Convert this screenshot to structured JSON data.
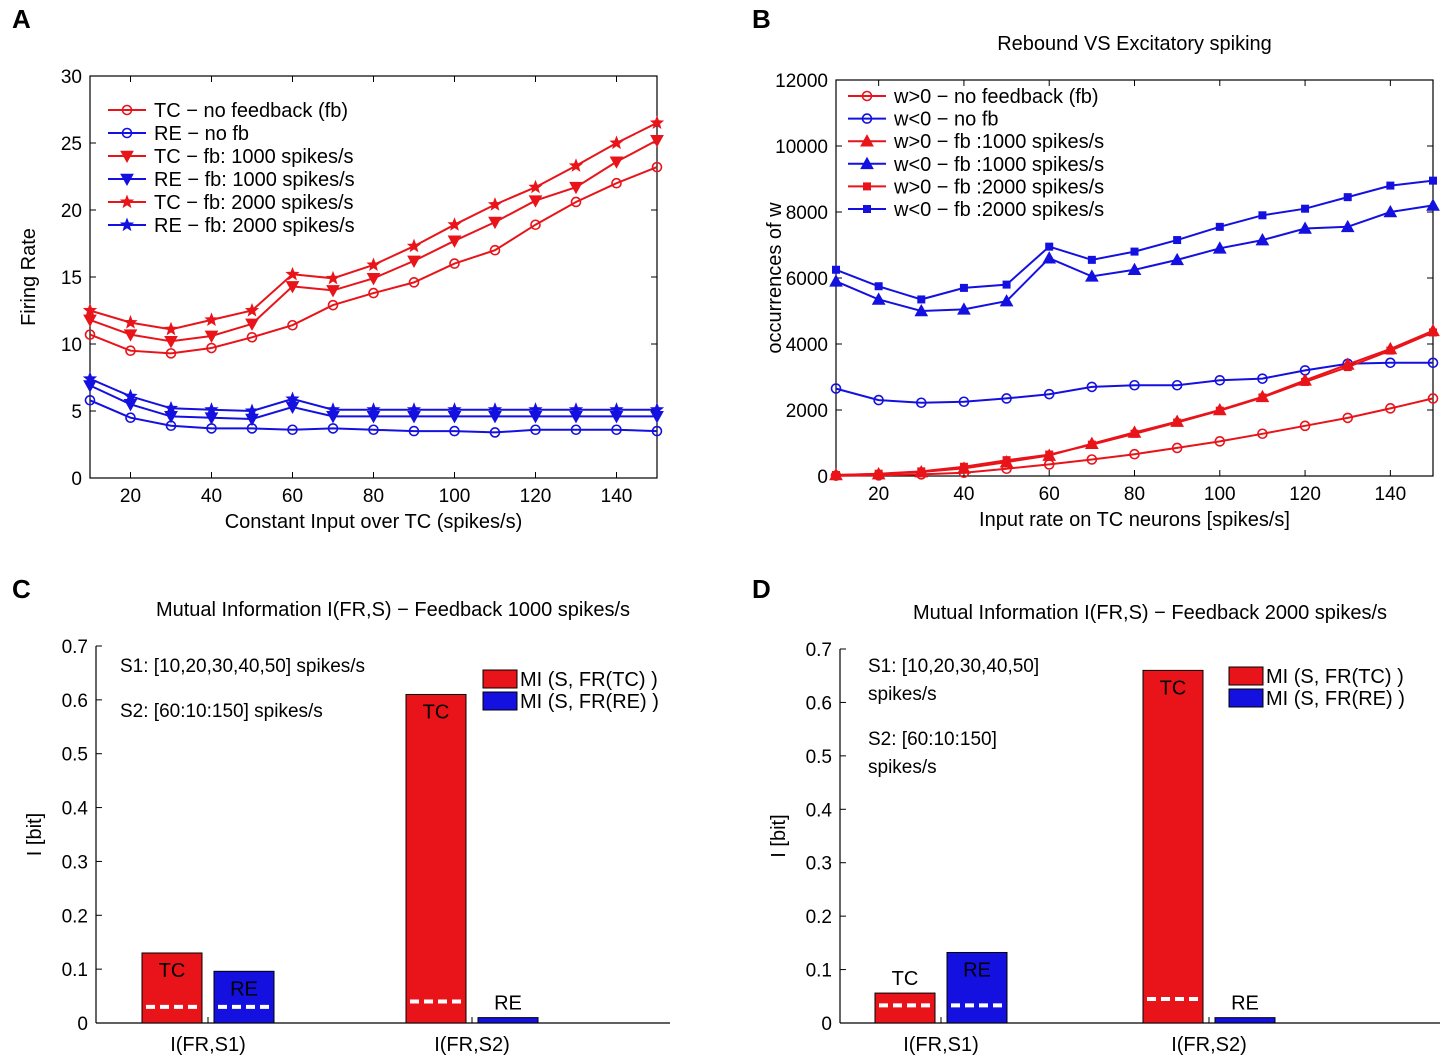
{
  "figure": {
    "panel_labels": [
      "A",
      "B",
      "C",
      "D"
    ]
  },
  "colors": {
    "red": "#e8141a",
    "blue": "#1410e0",
    "white": "#ffffff"
  },
  "chart_data": [
    {
      "panel": "A",
      "type": "line",
      "title": "",
      "xlabel": "Constant Input over TC (spikes/s)",
      "ylabel": "Firing Rate",
      "xlim": [
        10,
        150
      ],
      "ylim": [
        0,
        30
      ],
      "xticks": [
        20,
        40,
        60,
        80,
        100,
        120,
        140
      ],
      "yticks": [
        0,
        5,
        10,
        15,
        20,
        25,
        30
      ],
      "x": [
        10,
        20,
        30,
        40,
        50,
        60,
        70,
        80,
        90,
        100,
        110,
        120,
        130,
        140,
        150
      ],
      "legend_position": "top-left",
      "series": [
        {
          "name": "TC − no feedback (fb)",
          "color": "#e8141a",
          "marker": "circle",
          "values": [
            10.7,
            9.5,
            9.3,
            9.7,
            10.5,
            11.4,
            12.9,
            13.8,
            14.6,
            16.0,
            17.0,
            18.9,
            20.6,
            22.0,
            23.2
          ]
        },
        {
          "name": "RE − no fb",
          "color": "#1410e0",
          "marker": "circle",
          "values": [
            5.8,
            4.5,
            3.9,
            3.7,
            3.7,
            3.6,
            3.7,
            3.6,
            3.5,
            3.5,
            3.4,
            3.6,
            3.6,
            3.6,
            3.5
          ]
        },
        {
          "name": "TC − fb: 1000 spikes/s",
          "color": "#e8141a",
          "marker": "triangle-down",
          "values": [
            11.8,
            10.7,
            10.2,
            10.6,
            11.5,
            14.3,
            14.0,
            14.9,
            16.2,
            17.7,
            19.1,
            20.7,
            21.7,
            23.6,
            25.2
          ]
        },
        {
          "name": "RE − fb: 1000 spikes/s",
          "color": "#1410e0",
          "marker": "triangle-down",
          "values": [
            6.9,
            5.5,
            4.6,
            4.5,
            4.4,
            5.3,
            4.6,
            4.6,
            4.6,
            4.6,
            4.6,
            4.6,
            4.6,
            4.6,
            4.6
          ]
        },
        {
          "name": "TC − fb: 2000 spikes/s",
          "color": "#e8141a",
          "marker": "star",
          "values": [
            12.5,
            11.6,
            11.1,
            11.8,
            12.5,
            15.2,
            14.9,
            15.9,
            17.3,
            18.9,
            20.4,
            21.7,
            23.3,
            25.0,
            26.5
          ]
        },
        {
          "name": "RE − fb: 2000 spikes/s",
          "color": "#1410e0",
          "marker": "star",
          "values": [
            7.4,
            6.1,
            5.2,
            5.1,
            5.0,
            5.9,
            5.1,
            5.1,
            5.1,
            5.1,
            5.1,
            5.1,
            5.1,
            5.1,
            5.1
          ]
        }
      ]
    },
    {
      "panel": "B",
      "type": "line",
      "title": "Rebound VS Excitatory spiking",
      "xlabel": "Input rate on TC neurons [spikes/s]",
      "ylabel": "occurrences of w",
      "xlim": [
        10,
        150
      ],
      "ylim": [
        0,
        12000
      ],
      "xticks": [
        20,
        40,
        60,
        80,
        100,
        120,
        140
      ],
      "yticks": [
        0,
        2000,
        4000,
        6000,
        8000,
        10000,
        12000
      ],
      "x": [
        10,
        20,
        30,
        40,
        50,
        60,
        70,
        80,
        90,
        100,
        110,
        120,
        130,
        140,
        150
      ],
      "legend_position": "top-left",
      "series": [
        {
          "name": "w>0 − no feedback (fb)",
          "color": "#e8141a",
          "marker": "circle",
          "values": [
            10,
            20,
            50,
            100,
            220,
            350,
            500,
            660,
            850,
            1050,
            1280,
            1520,
            1760,
            2050,
            2350
          ]
        },
        {
          "name": "w<0 − no fb",
          "color": "#1410e0",
          "marker": "circle",
          "values": [
            2650,
            2300,
            2220,
            2250,
            2350,
            2480,
            2700,
            2750,
            2750,
            2900,
            2950,
            3200,
            3400,
            3430,
            3430
          ]
        },
        {
          "name": "w>0 − fb :1000 spikes/s",
          "color": "#e8141a",
          "marker": "triangle-up",
          "values": [
            30,
            60,
            120,
            230,
            420,
            620,
            980,
            1320,
            1650,
            2000,
            2400,
            2900,
            3380,
            3850,
            4400
          ]
        },
        {
          "name": "w<0 − fb :1000 spikes/s",
          "color": "#1410e0",
          "marker": "triangle-up",
          "values": [
            5900,
            5350,
            5000,
            5050,
            5300,
            6600,
            6050,
            6250,
            6550,
            6900,
            7150,
            7500,
            7550,
            8000,
            8200
          ]
        },
        {
          "name": "w>0 − fb :2000 spikes/s",
          "color": "#e8141a",
          "marker": "square",
          "values": [
            30,
            70,
            140,
            280,
            480,
            650,
            950,
            1280,
            1620,
            1980,
            2380,
            2850,
            3300,
            3800,
            4350
          ]
        },
        {
          "name": "w<0 − fb :2000 spikes/s",
          "color": "#1410e0",
          "marker": "square",
          "values": [
            6250,
            5750,
            5350,
            5700,
            5800,
            6950,
            6550,
            6800,
            7150,
            7550,
            7900,
            8100,
            8450,
            8800,
            8950
          ]
        }
      ]
    },
    {
      "panel": "C",
      "type": "bar",
      "title": "Mutual Information I(FR,S) − Feedback 1000 spikes/s",
      "xlabel": "",
      "ylabel": "I [bit]",
      "ylim": [
        0,
        0.7
      ],
      "yticks": [
        0,
        0.1,
        0.2,
        0.3,
        0.4,
        0.5,
        0.6,
        0.7
      ],
      "categories": [
        "I(FR,S1)",
        "I(FR,S2)"
      ],
      "series": [
        {
          "name": "MI (S, FR(TC) )",
          "color": "#e8141a",
          "bar_label": "TC",
          "values": [
            0.13,
            0.61
          ],
          "baseline": [
            0.03,
            0.04
          ]
        },
        {
          "name": "MI (S, FR(RE) )",
          "color": "#1410e0",
          "bar_label": "RE",
          "values": [
            0.096,
            0.01
          ],
          "baseline": [
            0.03,
            0.0
          ]
        }
      ],
      "annotations": [
        "S1: [10,20,30,40,50] spikes/s",
        "S2: [60:10:150] spikes/s"
      ],
      "legend_position": "top-right"
    },
    {
      "panel": "D",
      "type": "bar",
      "title": "Mutual Information I(FR,S) − Feedback 2000 spikes/s",
      "xlabel": "",
      "ylabel": "I [bit]",
      "ylim": [
        0,
        0.7
      ],
      "yticks": [
        0,
        0.1,
        0.2,
        0.3,
        0.4,
        0.5,
        0.6,
        0.7
      ],
      "categories": [
        "I(FR,S1)",
        "I(FR,S2)"
      ],
      "series": [
        {
          "name": "MI (S, FR(TC) )",
          "color": "#e8141a",
          "bar_label": "TC",
          "values": [
            0.056,
            0.66
          ],
          "baseline": [
            0.033,
            0.045
          ]
        },
        {
          "name": "MI (S, FR(RE) )",
          "color": "#1410e0",
          "bar_label": "RE",
          "values": [
            0.132,
            0.01
          ],
          "baseline": [
            0.033,
            0.0
          ]
        }
      ],
      "annotations": [
        "S1: [10,20,30,40,50]",
        "spikes/s",
        "S2: [60:10:150]",
        "spikes/s"
      ],
      "legend_position": "top-right"
    }
  ]
}
